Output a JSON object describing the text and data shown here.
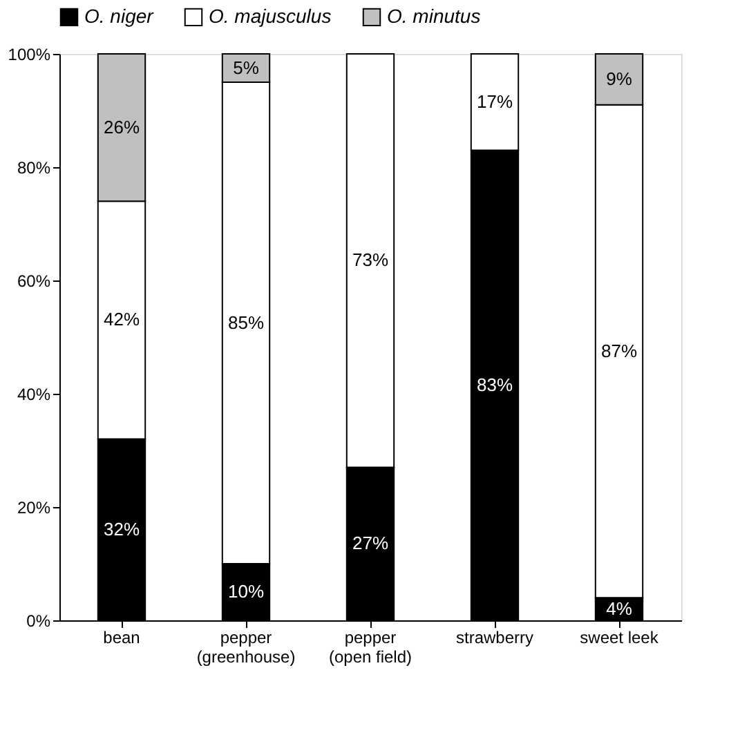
{
  "chart_data": {
    "type": "bar",
    "stacked": true,
    "categories": [
      "bean",
      "pepper\n(greenhouse)",
      "pepper\n(open field)",
      "strawberry",
      "sweet leek"
    ],
    "series": [
      {
        "name": "O. niger",
        "color": "#000000",
        "values": [
          32,
          10,
          27,
          83,
          4
        ],
        "value_labels": [
          "32%",
          "10%",
          "27%",
          "83%",
          "4%"
        ]
      },
      {
        "name": "O. majusculus",
        "color": "#ffffff",
        "values": [
          42,
          85,
          73,
          17,
          87
        ],
        "value_labels": [
          "42%",
          "85%",
          "73%",
          "17%",
          "87%"
        ]
      },
      {
        "name": "O. minutus",
        "color": "#c0c0c0",
        "values": [
          26,
          5,
          0,
          0,
          9
        ],
        "value_labels": [
          "26%",
          "5%",
          null,
          null,
          "9%"
        ]
      }
    ],
    "ylim": [
      0,
      100
    ],
    "yticks": [
      {
        "value": 0,
        "label": "0%"
      },
      {
        "value": 20,
        "label": "20%"
      },
      {
        "value": 40,
        "label": "40%"
      },
      {
        "value": 60,
        "label": "60%"
      },
      {
        "value": 80,
        "label": "80%"
      },
      {
        "value": 100,
        "label": "100%"
      }
    ],
    "grid": false,
    "legend": "top"
  }
}
